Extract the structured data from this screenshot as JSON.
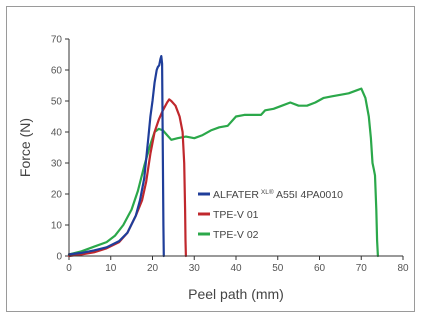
{
  "chart_data": {
    "type": "line",
    "title": "",
    "xlabel": "Peel path (mm)",
    "ylabel": "Force (N)",
    "xlim": [
      0,
      80
    ],
    "ylim": [
      0,
      70
    ],
    "xticks": [
      "0",
      "10",
      "20",
      "30",
      "40",
      "50",
      "60",
      "70",
      "80"
    ],
    "yticks": [
      "0",
      "10",
      "20",
      "30",
      "40",
      "50",
      "60",
      "70"
    ],
    "grid": false,
    "legend_position": "center-right",
    "legend": {
      "alfater_prefix": "ALFATER",
      "alfater_sup": "XL®",
      "alfater_suffix": " A55I 4PA0010"
    },
    "series": [
      {
        "name": "ALFATER XL® A55I 4PA0010",
        "color": "#1f3e9a",
        "x": [
          0,
          3,
          6,
          9,
          12,
          14,
          16,
          17,
          18,
          19,
          19.5,
          20,
          20.5,
          21,
          21.3,
          21.6,
          21.9,
          22.1,
          22.3,
          22.5,
          22.6,
          22.7
        ],
        "y": [
          0.5,
          1,
          1.8,
          2.8,
          4.8,
          7.5,
          13,
          18,
          25,
          38,
          45,
          50,
          56,
          60,
          61,
          61.5,
          63.5,
          64.5,
          62,
          30,
          10,
          0
        ]
      },
      {
        "name": "TPE-V 01",
        "color": "#c0282d",
        "x": [
          0,
          3,
          6,
          9,
          12,
          14,
          16,
          17.5,
          18.5,
          19.5,
          20.5,
          21.5,
          22.5,
          23.5,
          24,
          24.5,
          25.5,
          26.5,
          27.2,
          27.6,
          27.8,
          27.9,
          28
        ],
        "y": [
          0,
          0.5,
          1.2,
          2.5,
          4.5,
          7.5,
          13,
          18,
          24,
          33,
          40,
          44,
          47,
          49.5,
          50.5,
          50,
          48.5,
          45,
          40,
          30,
          15,
          5,
          0
        ]
      },
      {
        "name": "TPE-V 02",
        "color": "#2ba84a",
        "x": [
          0,
          3,
          6,
          9,
          11,
          13,
          15,
          16.5,
          18,
          19.5,
          20.5,
          21.5,
          22.5,
          23.5,
          24.5,
          26,
          28,
          30,
          32,
          34,
          36,
          38,
          40,
          42,
          44,
          46,
          47,
          49,
          51,
          53,
          55,
          57,
          59,
          61,
          63,
          65,
          67,
          69,
          70,
          71,
          71.8,
          72.3,
          72.7,
          73,
          73.3,
          73.6,
          73.8,
          74
        ],
        "y": [
          0.5,
          1.5,
          3,
          4.5,
          6.5,
          10,
          15,
          21,
          29,
          36,
          40,
          41,
          40.5,
          39,
          37.5,
          38,
          38.5,
          38,
          39,
          40.5,
          41.5,
          42,
          45,
          45.5,
          45.5,
          45.5,
          47,
          47.5,
          48.5,
          49.5,
          48.5,
          48.5,
          49.5,
          51,
          51.5,
          52,
          52.5,
          53.5,
          54,
          51,
          45,
          38,
          30,
          28,
          26,
          15,
          5,
          0
        ]
      }
    ]
  }
}
